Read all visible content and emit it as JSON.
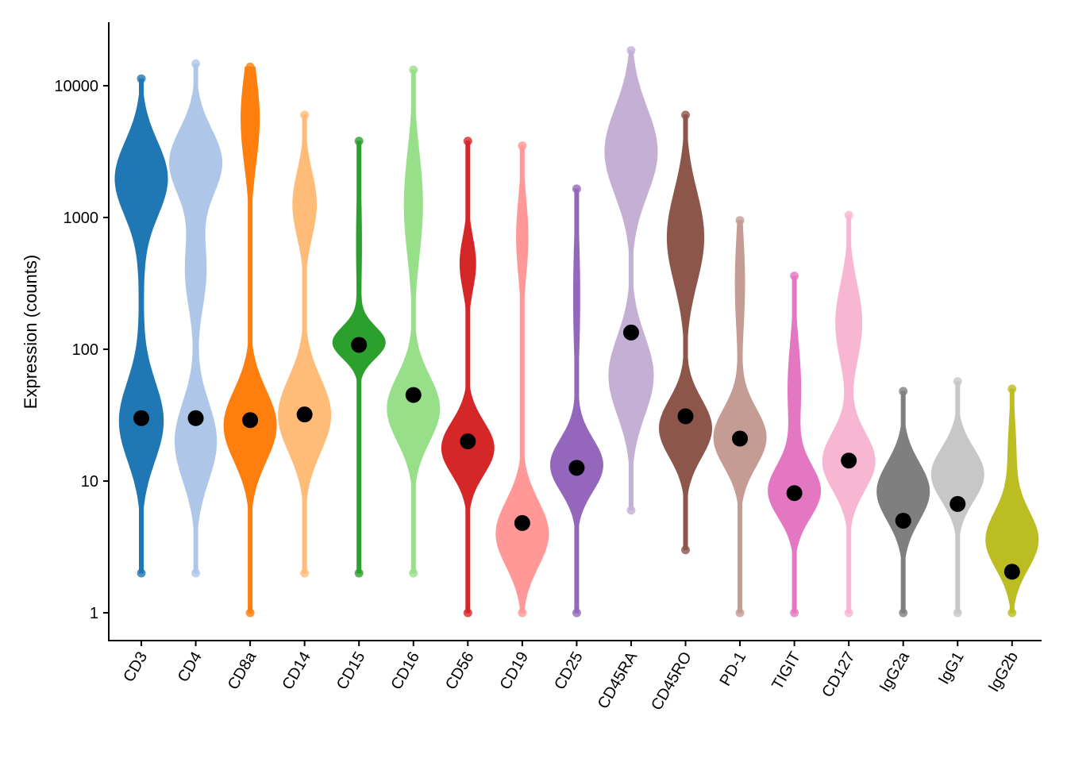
{
  "chart_data": {
    "type": "violin",
    "title": "",
    "xlabel": "",
    "ylabel": "Expression (counts)",
    "yscale": "log10",
    "ylim": [
      0.75,
      30000
    ],
    "yticks": [
      1,
      10,
      100,
      1000,
      10000
    ],
    "ytick_labels": [
      "1",
      "10",
      "100",
      "1000",
      "10000"
    ],
    "grid": false,
    "legend": "none",
    "median_marker_color": "#000000",
    "series": [
      {
        "name": "CD3",
        "color": "#1f77b4",
        "median": 30,
        "min": 2,
        "max": 11300,
        "modes": [
          [
            3.3,
            0.28,
            1.0
          ],
          [
            1.45,
            0.3,
            0.85
          ],
          [
            2.5,
            0.5,
            0.08
          ]
        ]
      },
      {
        "name": "CD4",
        "color": "#aec7e8",
        "median": 30,
        "min": 2,
        "max": 14700,
        "modes": [
          [
            3.42,
            0.25,
            1.0
          ],
          [
            2.6,
            0.3,
            0.4
          ],
          [
            1.3,
            0.3,
            0.8
          ]
        ]
      },
      {
        "name": "CD8a",
        "color": "#ff7f0e",
        "median": 29,
        "min": 1,
        "max": 13900,
        "modes": [
          [
            3.75,
            0.35,
            0.35
          ],
          [
            1.42,
            0.27,
            1.0
          ]
        ]
      },
      {
        "name": "CD14",
        "color": "#ffbb78",
        "median": 32,
        "min": 2,
        "max": 6000,
        "modes": [
          [
            3.1,
            0.25,
            0.45
          ],
          [
            1.5,
            0.28,
            1.0
          ]
        ]
      },
      {
        "name": "CD15",
        "color": "#2ca02c",
        "median": 108,
        "min": 2,
        "max": 3800,
        "modes": [
          [
            2.05,
            0.12,
            1.0
          ],
          [
            2.8,
            0.5,
            0.1
          ]
        ]
      },
      {
        "name": "CD16",
        "color": "#98df8a",
        "median": 45,
        "min": 2,
        "max": 13200,
        "modes": [
          [
            3.1,
            0.4,
            0.35
          ],
          [
            1.55,
            0.25,
            1.0
          ]
        ]
      },
      {
        "name": "CD56",
        "color": "#d62728",
        "median": 20,
        "min": 1,
        "max": 3800,
        "modes": [
          [
            2.65,
            0.2,
            0.3
          ],
          [
            1.25,
            0.2,
            1.0
          ]
        ]
      },
      {
        "name": "CD19",
        "color": "#ff9896",
        "median": 4.8,
        "min": 1,
        "max": 3500,
        "modes": [
          [
            2.85,
            0.3,
            0.22
          ],
          [
            0.6,
            0.25,
            1.0
          ]
        ]
      },
      {
        "name": "CD25",
        "color": "#9467bd",
        "median": 12.6,
        "min": 1,
        "max": 1650,
        "modes": [
          [
            2.4,
            0.5,
            0.12
          ],
          [
            1.12,
            0.2,
            1.0
          ]
        ]
      },
      {
        "name": "CD45RA",
        "color": "#c5b0d5",
        "median": 134,
        "min": 6,
        "max": 18500,
        "modes": [
          [
            3.5,
            0.33,
            1.0
          ],
          [
            1.8,
            0.3,
            0.85
          ]
        ]
      },
      {
        "name": "CD45RO",
        "color": "#8c564b",
        "median": 31,
        "min": 3,
        "max": 6000,
        "modes": [
          [
            2.85,
            0.35,
            0.7
          ],
          [
            1.4,
            0.22,
            1.0
          ]
        ]
      },
      {
        "name": "PD-1",
        "color": "#c49c94",
        "median": 21,
        "min": 1,
        "max": 950,
        "modes": [
          [
            2.5,
            0.4,
            0.18
          ],
          [
            1.33,
            0.22,
            1.0
          ]
        ]
      },
      {
        "name": "TIGIT",
        "color": "#e377c2",
        "median": 8.1,
        "min": 1,
        "max": 360,
        "modes": [
          [
            1.7,
            0.35,
            0.25
          ],
          [
            0.92,
            0.2,
            1.0
          ]
        ]
      },
      {
        "name": "CD127",
        "color": "#f7b6d2",
        "median": 14.3,
        "min": 1,
        "max": 1040,
        "modes": [
          [
            2.2,
            0.3,
            0.5
          ],
          [
            1.15,
            0.22,
            1.0
          ]
        ]
      },
      {
        "name": "IgG2a",
        "color": "#7f7f7f",
        "median": 5,
        "min": 1,
        "max": 48,
        "modes": [
          [
            0.92,
            0.22,
            1.0
          ]
        ]
      },
      {
        "name": "IgG1",
        "color": "#c7c7c7",
        "median": 6.7,
        "min": 1,
        "max": 57,
        "modes": [
          [
            1.05,
            0.2,
            1.0
          ]
        ]
      },
      {
        "name": "IgG2b",
        "color": "#bcbd22",
        "median": 2.05,
        "min": 1,
        "max": 50,
        "modes": [
          [
            0.55,
            0.22,
            1.0
          ],
          [
            1.2,
            0.3,
            0.15
          ]
        ]
      }
    ]
  }
}
